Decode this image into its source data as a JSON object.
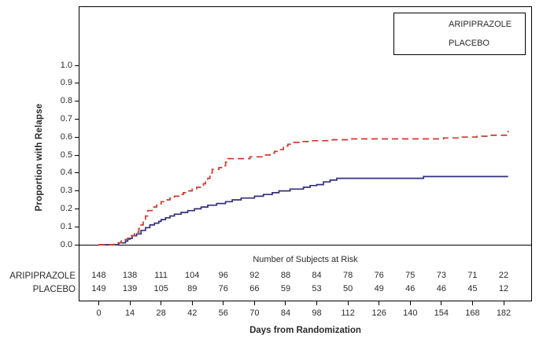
{
  "colors": {
    "aripiprazole_line": "#33307a",
    "placebo_line": "#cc3b2f",
    "frame": "#000000",
    "text": "#2b2b2b"
  },
  "legend": {
    "items": [
      {
        "label": "ARIPIPRAZOLE",
        "style": "solid"
      },
      {
        "label": "PLACEBO",
        "style": "dashed"
      }
    ]
  },
  "chart_data": {
    "type": "line",
    "subtype": "kaplan-meier-step",
    "title": "",
    "xlabel": "Days from Randomization",
    "ylabel": "Proportion with Relapse",
    "xlim": [
      0,
      182
    ],
    "ylim": [
      0.0,
      1.0
    ],
    "grid": false,
    "legend_position": "top-right",
    "x_ticks": [
      0,
      14,
      28,
      42,
      56,
      70,
      84,
      98,
      112,
      126,
      140,
      154,
      168,
      182
    ],
    "x_tick_labels": [
      "0",
      "14",
      "28",
      "42",
      "56",
      "70",
      "84",
      "98",
      "112",
      "126",
      "140",
      "154",
      "168",
      "182"
    ],
    "y_tick_labels": [
      "0.0",
      "0.1",
      "0.2",
      "0.3",
      "0.4",
      "0.5",
      "0.6",
      "0.7",
      "0.8",
      "0.9",
      "1.0"
    ],
    "series": [
      {
        "name": "ARIPIPRAZOLE",
        "color": "#33307a",
        "style": "solid",
        "steps": [
          [
            0,
            0
          ],
          [
            9,
            0.01
          ],
          [
            12,
            0.02
          ],
          [
            13,
            0.035
          ],
          [
            15,
            0.05
          ],
          [
            17,
            0.06
          ],
          [
            19,
            0.08
          ],
          [
            21,
            0.095
          ],
          [
            23,
            0.11
          ],
          [
            25,
            0.12
          ],
          [
            27,
            0.13
          ],
          [
            28,
            0.14
          ],
          [
            30,
            0.15
          ],
          [
            32,
            0.16
          ],
          [
            34,
            0.17
          ],
          [
            37,
            0.18
          ],
          [
            40,
            0.19
          ],
          [
            43,
            0.2
          ],
          [
            46,
            0.21
          ],
          [
            49,
            0.22
          ],
          [
            53,
            0.23
          ],
          [
            57,
            0.24
          ],
          [
            60,
            0.25
          ],
          [
            64,
            0.26
          ],
          [
            70,
            0.27
          ],
          [
            74,
            0.28
          ],
          [
            78,
            0.29
          ],
          [
            81,
            0.3
          ],
          [
            86,
            0.31
          ],
          [
            92,
            0.32
          ],
          [
            95,
            0.33
          ],
          [
            98,
            0.335
          ],
          [
            101,
            0.35
          ],
          [
            104,
            0.36
          ],
          [
            107,
            0.37
          ],
          [
            146,
            0.38
          ],
          [
            184,
            0.38
          ]
        ]
      },
      {
        "name": "PLACEBO",
        "color": "#cc3b2f",
        "style": "dashed",
        "steps": [
          [
            0,
            0
          ],
          [
            7,
            0.01
          ],
          [
            10,
            0.02
          ],
          [
            12,
            0.03
          ],
          [
            14,
            0.05
          ],
          [
            16,
            0.07
          ],
          [
            18,
            0.09
          ],
          [
            19,
            0.11
          ],
          [
            20,
            0.13
          ],
          [
            21,
            0.16
          ],
          [
            22,
            0.19
          ],
          [
            24,
            0.21
          ],
          [
            26,
            0.22
          ],
          [
            28,
            0.24
          ],
          [
            30,
            0.25
          ],
          [
            32,
            0.26
          ],
          [
            34,
            0.27
          ],
          [
            36,
            0.28
          ],
          [
            38,
            0.29
          ],
          [
            40,
            0.3
          ],
          [
            42,
            0.31
          ],
          [
            44,
            0.32
          ],
          [
            46,
            0.33
          ],
          [
            47,
            0.34
          ],
          [
            48,
            0.35
          ],
          [
            49,
            0.37
          ],
          [
            50,
            0.4
          ],
          [
            51,
            0.42
          ],
          [
            54,
            0.43
          ],
          [
            56,
            0.44
          ],
          [
            57,
            0.46
          ],
          [
            58,
            0.48
          ],
          [
            68,
            0.49
          ],
          [
            74,
            0.5
          ],
          [
            77,
            0.51
          ],
          [
            79,
            0.52
          ],
          [
            81,
            0.53
          ],
          [
            83,
            0.55
          ],
          [
            85,
            0.56
          ],
          [
            87,
            0.57
          ],
          [
            90,
            0.575
          ],
          [
            95,
            0.58
          ],
          [
            105,
            0.585
          ],
          [
            112,
            0.59
          ],
          [
            155,
            0.595
          ],
          [
            163,
            0.6
          ],
          [
            170,
            0.605
          ],
          [
            176,
            0.61
          ],
          [
            183,
            0.61
          ],
          [
            184,
            0.635
          ]
        ]
      }
    ],
    "at_risk_table": {
      "title": "Number of Subjects at Risk",
      "rows": [
        {
          "label": "ARIPIPRAZOLE",
          "values": [
            "148",
            "138",
            "111",
            "104",
            "96",
            "92",
            "88",
            "84",
            "78",
            "76",
            "75",
            "73",
            "71",
            "22"
          ]
        },
        {
          "label": "PLACEBO",
          "values": [
            "149",
            "139",
            "105",
            "89",
            "76",
            "66",
            "59",
            "53",
            "50",
            "49",
            "46",
            "46",
            "45",
            "12"
          ]
        }
      ]
    }
  }
}
